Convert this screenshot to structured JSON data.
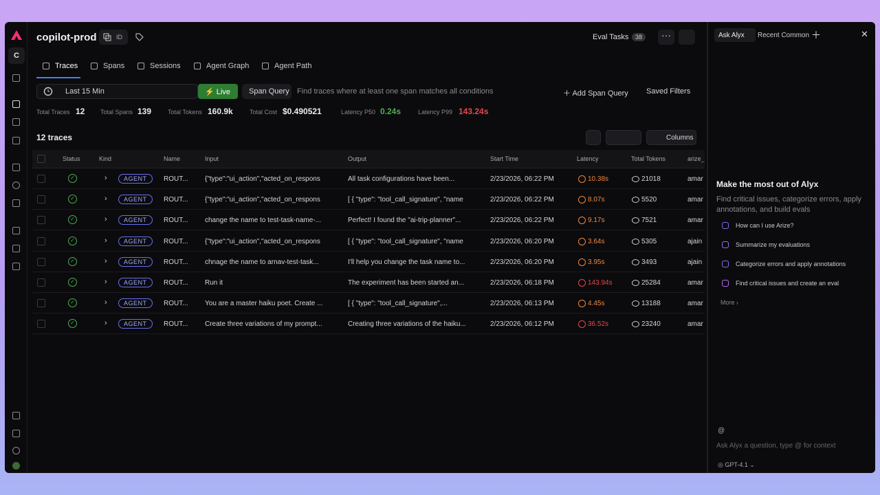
{
  "header": {
    "project": "copilot-prod",
    "id_label": "ID",
    "eval_tasks": "Eval Tasks",
    "eval_count": "38",
    "nav_letter": "C"
  },
  "tabs": [
    "Traces",
    "Spans",
    "Sessions",
    "Agent Graph",
    "Agent Path"
  ],
  "filter": {
    "time": "Last 15 Min",
    "live": "Live",
    "span_query": "Span Query",
    "placeholder": "Find traces where at least one span matches all conditions",
    "add": "Add Span Query",
    "saved": "Saved Filters"
  },
  "stats": [
    {
      "label": "Total Traces",
      "value": "12"
    },
    {
      "label": "Total Spans",
      "value": "139"
    },
    {
      "label": "Total Tokens",
      "value": "160.9k"
    },
    {
      "label": "Total Cost",
      "value": "$0.490521"
    },
    {
      "label": "Latency P50",
      "value": "0.24s",
      "color": "#4caf50"
    },
    {
      "label": "Latency P99",
      "value": "143.24s",
      "color": "#e5484d"
    }
  ],
  "table": {
    "title": "12 traces",
    "columns_button": "Columns",
    "headers": [
      "Status",
      "Kind",
      "Name",
      "Input",
      "Output",
      "Start Time",
      "Latency",
      "Total Tokens",
      "arize_"
    ],
    "rows": [
      [
        "AGENT",
        "ROUT...",
        "{\"type\":\"ui_action\",\"acted_on_respons",
        "All task configurations have been...",
        "2/23/2026, 06:22 PM",
        "10.38s",
        "21018",
        "amar"
      ],
      [
        "AGENT",
        "ROUT...",
        "{\"type\":\"ui_action\",\"acted_on_respons",
        "[ { \"type\": \"tool_call_signature\", \"name",
        "2/23/2026, 06:22 PM",
        "8.07s",
        "5520",
        "amar"
      ],
      [
        "AGENT",
        "ROUT...",
        "change the name to test-task-name-...",
        "Perfect! I found the \"ai-trip-planner\"...",
        "2/23/2026, 06:22 PM",
        "9.17s",
        "7521",
        "amar"
      ],
      [
        "AGENT",
        "ROUT...",
        "{\"type\":\"ui_action\",\"acted_on_respons",
        "[ { \"type\": \"tool_call_signature\", \"name",
        "2/23/2026, 06:20 PM",
        "3.64s",
        "5305",
        "ajain"
      ],
      [
        "AGENT",
        "ROUT...",
        "chnage the name to arnav-test-task...",
        "I'll help you change the task name to...",
        "2/23/2026, 06:20 PM",
        "3.95s",
        "3493",
        "ajain"
      ],
      [
        "AGENT",
        "ROUT...",
        "Run it",
        "The experiment has been started an...",
        "2/23/2026, 06:18 PM",
        "143.94s",
        "25284",
        "amar"
      ],
      [
        "AGENT",
        "ROUT...",
        "You are a master haiku poet. Create ...",
        "[ { \"type\": \"tool_call_signature\",...",
        "2/23/2026, 06:13 PM",
        "4.45s",
        "13188",
        "amar"
      ],
      [
        "AGENT",
        "ROUT...",
        "Create three variations of my prompt...",
        "Creating three variations of the haiku...",
        "2/23/2026, 06:12 PM",
        "36.52s",
        "23240",
        "amar"
      ]
    ],
    "latency_colors": [
      "#f0883e",
      "#f0883e",
      "#f0883e",
      "#f0883e",
      "#f0883e",
      "#e5484d",
      "#f0883e",
      "#e5484d"
    ]
  },
  "alyx": {
    "tabs": [
      "Ask Alyx",
      "Recent Common"
    ],
    "heading": "Make the most out of Alyx",
    "description": "Find critical issues, categorize errors, apply annotations, and build evals",
    "suggestions": [
      "How can I use Arize?",
      "Summarize my evaluations",
      "Categorize errors and apply annotations",
      "Find critical issues and create an eval"
    ],
    "more": "More",
    "at": "@",
    "placeholder": "Ask Alyx a question, type @ for context",
    "model": "GPT-4.1"
  }
}
